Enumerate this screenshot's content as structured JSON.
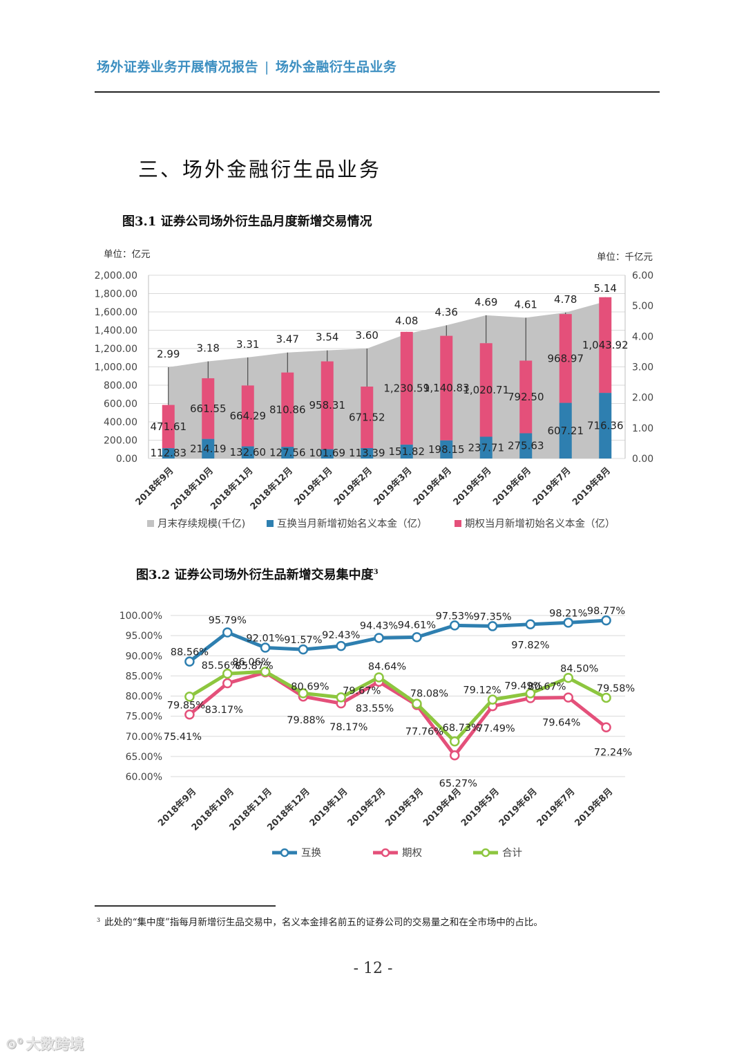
{
  "header": {
    "left": "场外证券业务开展情况报告",
    "separator": "|",
    "right": "场外金融衍生品业务"
  },
  "section_title": "三、场外金融衍生品业务",
  "figure1": {
    "title": "图3.1 证券公司场外衍生品月度新增交易情况"
  },
  "figure2": {
    "title": "图3.2 证券公司场外衍生品新增交易集中度",
    "footnote_ref": "3"
  },
  "footnote": {
    "marker": "3",
    "text": "此处的“集中度”指每月新增衍生品交易中，名义本金排名前五的证券公司的交易量之和在全市场中的占比。"
  },
  "page_number": "- 12 -",
  "watermark": {
    "icon": "link-icon",
    "text": "大数跨境"
  },
  "colors": {
    "header": "#3d8fc1",
    "swap": "#2e7fb0",
    "option": "#e4507a",
    "total": "#8dc63f",
    "area": "#c3c3c3"
  },
  "chart_data": [
    {
      "type": "bar",
      "title": "图3.1 证券公司场外衍生品月度新增交易情况",
      "left_unit": "单位：亿元",
      "right_unit": "单位：千亿元",
      "categories": [
        "2018年9月",
        "2018年10月",
        "2018年11月",
        "2018年12月",
        "2019年1月",
        "2019年2月",
        "2019年3月",
        "2019年4月",
        "2019年5月",
        "2019年6月",
        "2019年7月",
        "2019年8月"
      ],
      "y_left": {
        "min": 0,
        "max": 2000,
        "step": 200,
        "ticks": [
          "0.00",
          "200.00",
          "400.00",
          "600.00",
          "800.00",
          "1,000.00",
          "1,200.00",
          "1,400.00",
          "1,600.00",
          "1,800.00",
          "2,000.00"
        ]
      },
      "y_right": {
        "min": 0,
        "max": 6,
        "step": 1,
        "ticks": [
          "0.00",
          "1.00",
          "2.00",
          "3.00",
          "4.00",
          "5.00",
          "6.00"
        ]
      },
      "series": [
        {
          "name": "月末存续规模(千亿)",
          "kind": "area",
          "axis": "right",
          "values": [
            2.99,
            3.18,
            3.31,
            3.47,
            3.54,
            3.6,
            4.08,
            4.36,
            4.69,
            4.61,
            4.78,
            5.14
          ],
          "labels": [
            "2.99",
            "3.18",
            "3.31",
            "3.47",
            "3.54",
            "3.60",
            "4.08",
            "4.36",
            "4.69",
            "4.61",
            "4.78",
            "5.14"
          ]
        },
        {
          "name": "互换当月新增初始名义本金（亿）",
          "kind": "stacked-bar",
          "axis": "left",
          "values": [
            112.83,
            214.19,
            132.6,
            127.56,
            101.69,
            113.39,
            151.82,
            198.15,
            237.71,
            275.63,
            607.21,
            716.36
          ],
          "labels": [
            "112.83",
            "214.19",
            "132.60",
            "127.56",
            "101.69",
            "113.39",
            "151.82",
            "198.15",
            "237.71",
            "275.63",
            "607.21",
            "716.36"
          ]
        },
        {
          "name": "期权当月新增初始名义本金（亿）",
          "kind": "stacked-bar",
          "axis": "left",
          "values": [
            471.61,
            661.55,
            664.29,
            810.86,
            958.31,
            671.52,
            1230.59,
            1140.83,
            1020.71,
            792.5,
            968.97,
            1043.92
          ],
          "labels": [
            "471.61",
            "661.55",
            "664.29",
            "810.86",
            "958.31",
            "671.52",
            "1,230.59",
            "1,140.83",
            "1,020.71",
            "792.50",
            "968.97",
            "1,043.92"
          ]
        }
      ]
    },
    {
      "type": "line",
      "title": "图3.2 证券公司场外衍生品新增交易集中度",
      "categories": [
        "2018年9月",
        "2018年10月",
        "2018年11月",
        "2018年12月",
        "2019年1月",
        "2019年2月",
        "2019年3月",
        "2019年4月",
        "2019年5月",
        "2019年6月",
        "2019年7月",
        "2019年8月"
      ],
      "ylim": [
        60,
        100
      ],
      "yticks": [
        "60.00%",
        "65.00%",
        "70.00%",
        "75.00%",
        "80.00%",
        "85.00%",
        "90.00%",
        "95.00%",
        "100.00%"
      ],
      "series": [
        {
          "name": "互换",
          "values": [
            88.56,
            95.79,
            92.01,
            91.57,
            92.43,
            94.43,
            94.61,
            97.53,
            97.35,
            97.82,
            98.21,
            98.77
          ],
          "labels": [
            "88.56%",
            "95.79%",
            "92.01%",
            "91.57%",
            "92.43%",
            "94.43%",
            "94.61%",
            "97.53%",
            "97.35%",
            "97.82%",
            "98.21%",
            "98.77%"
          ]
        },
        {
          "name": "期权",
          "values": [
            75.41,
            83.17,
            85.87,
            79.88,
            78.17,
            83.55,
            77.76,
            65.27,
            77.49,
            79.49,
            79.64,
            72.24
          ],
          "labels": [
            "75.41%",
            "83.17%",
            "85.87%",
            "79.88%",
            "78.17%",
            "83.55%",
            "77.76%",
            "65.27%",
            "77.49%",
            "79.49%",
            "79.64%",
            "72.24%"
          ]
        },
        {
          "name": "合计",
          "values": [
            79.85,
            85.56,
            86.06,
            80.69,
            79.67,
            84.64,
            78.08,
            68.73,
            79.12,
            80.67,
            84.5,
            79.58
          ],
          "labels": [
            "79.85%",
            "85.56%",
            "86.06%",
            "80.69%",
            "79.67%",
            "84.64%",
            "78.08%",
            "68.73%",
            "79.12%",
            "80.67%",
            "84.50%",
            "79.58%"
          ]
        }
      ]
    }
  ]
}
